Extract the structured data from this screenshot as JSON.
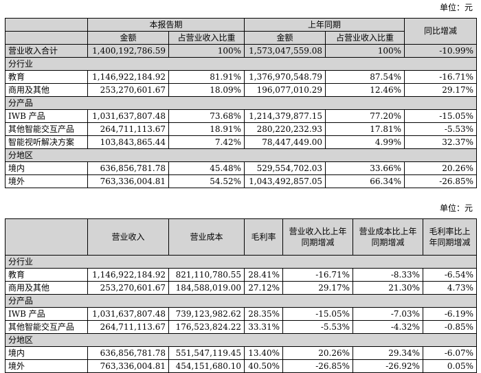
{
  "table1": {
    "unit": "单位：元",
    "headers": {
      "current_period": "本报告期",
      "prior_period": "上年同期",
      "yoy": "同比增减",
      "amount": "金额",
      "ratio": "占营业收入比重"
    },
    "total": {
      "label": "营业收入合计",
      "cur_amt": "1,400,192,786.59",
      "cur_pct": "100%",
      "prev_amt": "1,573,047,559.08",
      "prev_pct": "100%",
      "yoy": "-10.99%"
    },
    "sections": [
      {
        "title": "分行业",
        "rows": [
          {
            "label": "教育",
            "cur_amt": "1,146,922,184.92",
            "cur_pct": "81.91%",
            "prev_amt": "1,376,970,548.79",
            "prev_pct": "87.54%",
            "yoy": "-16.71%"
          },
          {
            "label": "商用及其他",
            "cur_amt": "253,270,601.67",
            "cur_pct": "18.09%",
            "prev_amt": "196,077,010.29",
            "prev_pct": "12.46%",
            "yoy": "29.17%"
          }
        ]
      },
      {
        "title": "分产品",
        "rows": [
          {
            "label": "IWB 产品",
            "cur_amt": "1,031,637,807.48",
            "cur_pct": "73.68%",
            "prev_amt": "1,214,379,877.15",
            "prev_pct": "77.20%",
            "yoy": "-15.05%"
          },
          {
            "label": "其他智能交互产品",
            "cur_amt": "264,711,113.67",
            "cur_pct": "18.91%",
            "prev_amt": "280,220,232.93",
            "prev_pct": "17.81%",
            "yoy": "-5.53%"
          },
          {
            "label": "智能视听解决方案",
            "cur_amt": "103,843,865.44",
            "cur_pct": "7.42%",
            "prev_amt": "78,447,449.00",
            "prev_pct": "4.99%",
            "yoy": "32.37%"
          }
        ]
      },
      {
        "title": "分地区",
        "rows": [
          {
            "label": "境内",
            "cur_amt": "636,856,781.78",
            "cur_pct": "45.48%",
            "prev_amt": "529,554,702.03",
            "prev_pct": "33.66%",
            "yoy": "20.26%"
          },
          {
            "label": "境外",
            "cur_amt": "763,336,004.81",
            "cur_pct": "54.52%",
            "prev_amt": "1,043,492,857.05",
            "prev_pct": "66.34%",
            "yoy": "-26.85%"
          }
        ]
      }
    ]
  },
  "table2": {
    "unit": "单位：元",
    "headers": {
      "revenue": "营业收入",
      "cost": "营业成本",
      "margin": "毛利率",
      "rev_yoy": "营业收入比上年同期增减",
      "cost_yoy": "营业成本比上年同期增减",
      "margin_yoy": "毛利率比上年同期增减"
    },
    "sections": [
      {
        "title": "分行业",
        "rows": [
          {
            "label": "教育",
            "revenue": "1,146,922,184.92",
            "cost": "821,110,780.55",
            "margin": "28.41%",
            "rev_yoy": "-16.71%",
            "cost_yoy": "-8.33%",
            "margin_yoy": "-6.54%"
          },
          {
            "label": "商用及其他",
            "revenue": "253,270,601.67",
            "cost": "184,588,019.00",
            "margin": "27.12%",
            "rev_yoy": "29.17%",
            "cost_yoy": "21.30%",
            "margin_yoy": "4.73%"
          }
        ]
      },
      {
        "title": "分产品",
        "rows": [
          {
            "label": "IWB 产品",
            "revenue": "1,031,637,807.48",
            "cost": "739,123,982.62",
            "margin": "28.35%",
            "rev_yoy": "-15.05%",
            "cost_yoy": "-7.03%",
            "margin_yoy": "-6.19%"
          },
          {
            "label": "其他智能交互产品",
            "revenue": "264,711,113.67",
            "cost": "176,523,824.22",
            "margin": "33.31%",
            "rev_yoy": "-5.53%",
            "cost_yoy": "-4.32%",
            "margin_yoy": "-0.85%"
          }
        ]
      },
      {
        "title": "分地区",
        "rows": [
          {
            "label": "境内",
            "revenue": "636,856,781.78",
            "cost": "551,547,119.45",
            "margin": "13.40%",
            "rev_yoy": "20.26%",
            "cost_yoy": "29.34%",
            "margin_yoy": "-6.07%"
          },
          {
            "label": "境外",
            "revenue": "763,336,004.81",
            "cost": "454,151,680.10",
            "margin": "40.50%",
            "rev_yoy": "-26.85%",
            "cost_yoy": "-26.92%",
            "margin_yoy": "0.05%"
          }
        ]
      }
    ]
  }
}
